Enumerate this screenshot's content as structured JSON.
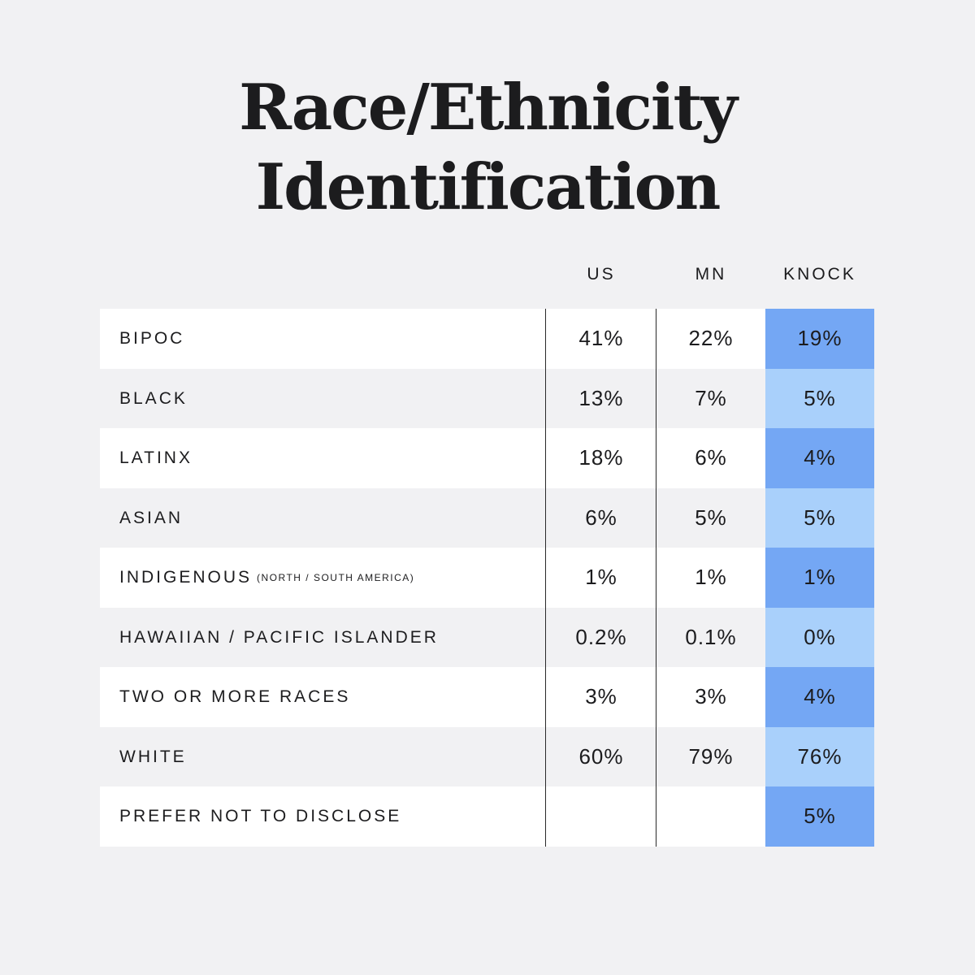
{
  "chart_data": {
    "type": "table",
    "title_line1": "Race/Ethnicity",
    "title_line2": "Identification",
    "columns": [
      "US",
      "MN",
      "KNOCK"
    ],
    "rows": [
      {
        "label": "BIPOC",
        "note": "",
        "us": "41%",
        "mn": "22%",
        "knock": "19%"
      },
      {
        "label": "BLACK",
        "note": "",
        "us": "13%",
        "mn": "7%",
        "knock": "5%"
      },
      {
        "label": "LATINX",
        "note": "",
        "us": "18%",
        "mn": "6%",
        "knock": "4%"
      },
      {
        "label": "ASIAN",
        "note": "",
        "us": "6%",
        "mn": "5%",
        "knock": "5%"
      },
      {
        "label": "INDIGENOUS",
        "note": "(NORTH / SOUTH AMERICA)",
        "us": "1%",
        "mn": "1%",
        "knock": "1%"
      },
      {
        "label": "HAWAIIAN / PACIFIC ISLANDER",
        "note": "",
        "us": "0.2%",
        "mn": "0.1%",
        "knock": "0%"
      },
      {
        "label": "TWO OR MORE RACES",
        "note": "",
        "us": "3%",
        "mn": "3%",
        "knock": "4%"
      },
      {
        "label": "WHITE",
        "note": "",
        "us": "60%",
        "mn": "79%",
        "knock": "76%"
      },
      {
        "label": "PREFER NOT TO DISCLOSE",
        "note": "",
        "us": "",
        "mn": "",
        "knock": "5%"
      }
    ],
    "colors": {
      "background": "#f1f1f3",
      "row_white": "#ffffff",
      "knock_dark": "#74a7f4",
      "knock_light": "#a9d0fb",
      "text": "#1c1c1e"
    }
  }
}
